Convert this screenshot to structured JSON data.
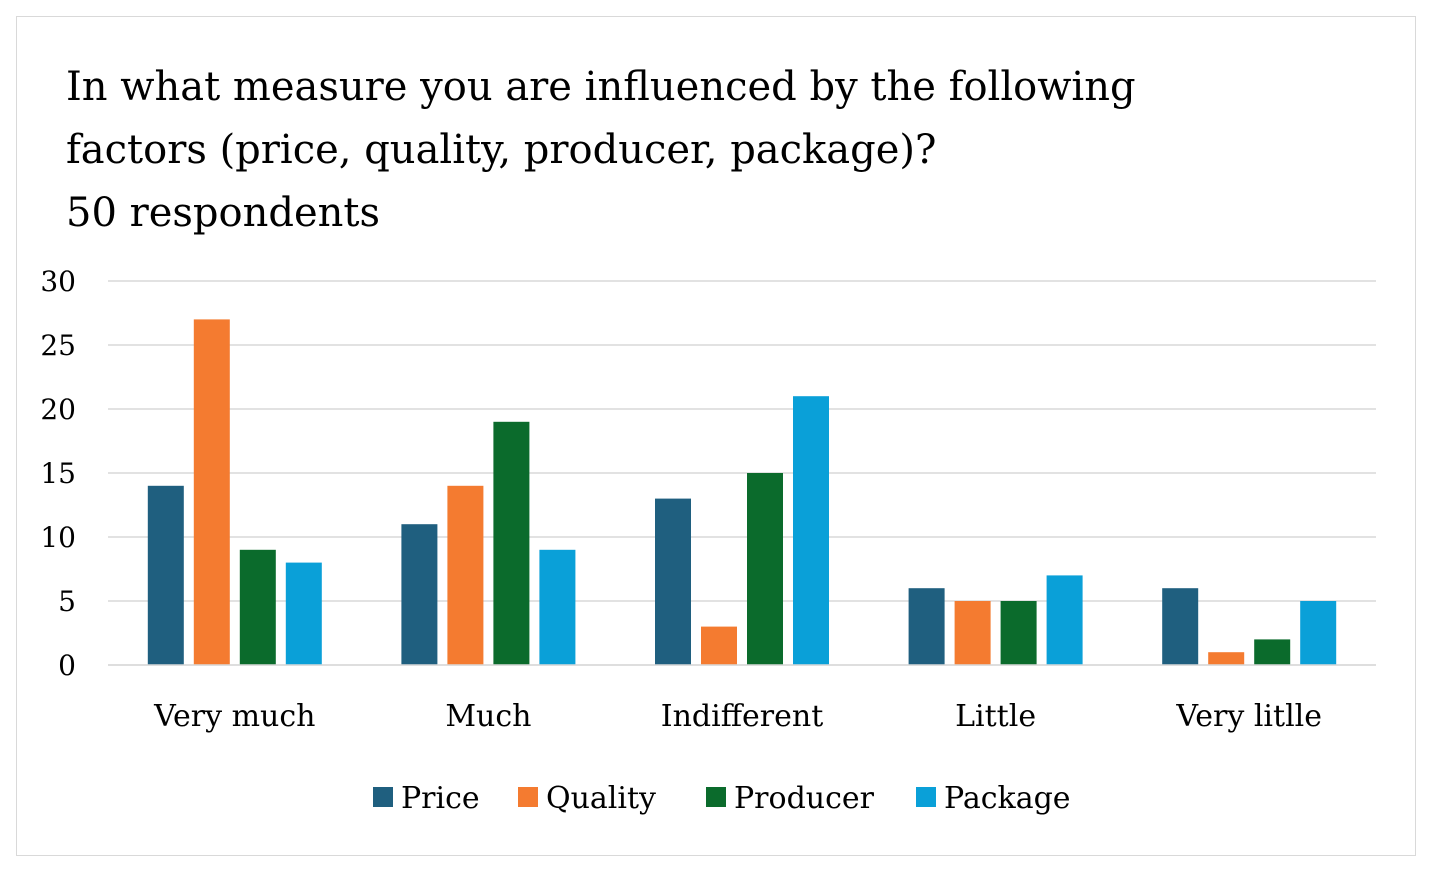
{
  "chart_data": {
    "type": "bar",
    "title_lines": [
      "In what measure you are influenced by the following",
      "factors (price, quality, producer, package)?",
      "50 respondents"
    ],
    "categories": [
      "Very much",
      "Much",
      "Indifferent",
      "Little",
      "Very litlle"
    ],
    "series": [
      {
        "name": "Price",
        "color": "#1f5f7f",
        "values": [
          14,
          11,
          13,
          6,
          6
        ]
      },
      {
        "name": "Quality",
        "color": "#f47b30",
        "values": [
          27,
          14,
          3,
          5,
          1
        ]
      },
      {
        "name": "Producer",
        "color": "#0b6b2c",
        "values": [
          9,
          19,
          15,
          5,
          2
        ]
      },
      {
        "name": "Package",
        "color": "#0aa0d8",
        "values": [
          8,
          9,
          21,
          7,
          5
        ]
      }
    ],
    "ylim": [
      0,
      30
    ],
    "yticks": [
      0,
      5,
      10,
      15,
      20,
      25,
      30
    ],
    "grid": true,
    "legend_position": "bottom"
  }
}
